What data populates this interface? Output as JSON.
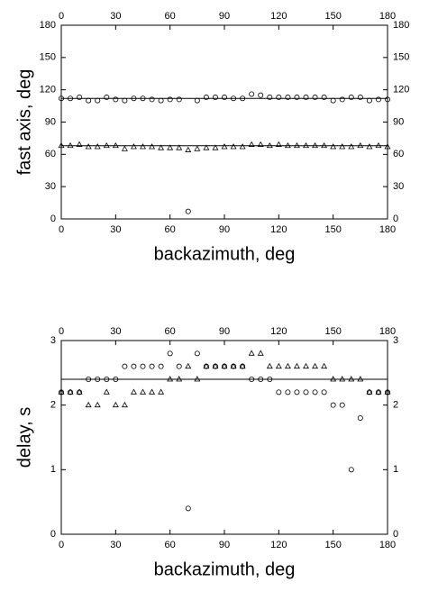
{
  "chart_data": [
    {
      "type": "scatter",
      "xlabel": "backazimuth, deg",
      "ylabel": "fast axis, deg",
      "x": [
        0,
        5,
        10,
        15,
        20,
        25,
        30,
        35,
        40,
        45,
        50,
        55,
        60,
        65,
        70,
        75,
        80,
        85,
        90,
        95,
        100,
        105,
        110,
        115,
        120,
        125,
        130,
        135,
        140,
        145,
        150,
        155,
        160,
        165,
        170,
        175,
        180
      ],
      "series": [
        {
          "marker": "circle",
          "color": "#000000",
          "values": [
            112,
            112,
            113,
            110,
            110,
            113,
            111,
            110,
            112,
            112,
            111,
            110,
            111,
            111,
            7,
            110,
            113,
            113,
            113,
            112,
            112,
            116,
            115,
            113,
            113,
            113,
            113,
            113,
            113,
            113,
            110,
            111,
            113,
            113,
            110,
            111,
            111
          ]
        },
        {
          "marker": "triangle",
          "color": "#000000",
          "values": [
            68,
            68,
            69,
            67,
            67,
            68,
            68,
            65,
            67,
            67,
            67,
            66,
            66,
            66,
            64,
            65,
            66,
            66,
            67,
            67,
            67,
            69,
            69,
            68,
            69,
            68,
            68,
            68,
            68,
            68,
            67,
            67,
            67,
            68,
            67,
            68,
            67
          ]
        }
      ],
      "hlines": [
        112,
        68
      ],
      "xlim": [
        0,
        180
      ],
      "xticks": [
        0,
        30,
        60,
        90,
        120,
        150,
        180
      ],
      "ylim": [
        0,
        180
      ],
      "yticks": [
        0,
        30,
        60,
        90,
        120,
        150,
        180
      ]
    },
    {
      "type": "scatter",
      "xlabel": "backazimuth, deg",
      "ylabel": "delay, s",
      "x": [
        0,
        5,
        10,
        15,
        20,
        25,
        30,
        35,
        40,
        45,
        50,
        55,
        60,
        65,
        70,
        75,
        80,
        85,
        90,
        95,
        100,
        105,
        110,
        115,
        120,
        125,
        130,
        135,
        140,
        145,
        150,
        155,
        160,
        165,
        170,
        175,
        180
      ],
      "series": [
        {
          "marker": "circle",
          "color": "#000000",
          "values": [
            2.2,
            2.2,
            2.2,
            2.4,
            2.4,
            2.4,
            2.4,
            2.6,
            2.6,
            2.6,
            2.6,
            2.6,
            2.8,
            2.6,
            0.4,
            2.8,
            2.6,
            2.6,
            2.6,
            2.6,
            2.6,
            2.4,
            2.4,
            2.4,
            2.2,
            2.2,
            2.2,
            2.2,
            2.2,
            2.2,
            2.0,
            2.0,
            1.0,
            1.8,
            2.2,
            2.2,
            2.2
          ]
        },
        {
          "marker": "triangle",
          "color": "#000000",
          "values": [
            2.2,
            2.2,
            2.2,
            2.0,
            2.0,
            2.2,
            2.0,
            2.0,
            2.2,
            2.2,
            2.2,
            2.2,
            2.4,
            2.4,
            2.6,
            2.4,
            2.6,
            2.6,
            2.6,
            2.6,
            2.6,
            2.8,
            2.8,
            2.6,
            2.6,
            2.6,
            2.6,
            2.6,
            2.6,
            2.6,
            2.4,
            2.4,
            2.4,
            2.4,
            2.2,
            2.2,
            2.2
          ]
        }
      ],
      "hlines": [
        2.4
      ],
      "xlim": [
        0,
        180
      ],
      "xticks": [
        0,
        30,
        60,
        90,
        120,
        150,
        180
      ],
      "ylim": [
        0,
        3
      ],
      "yticks": [
        0,
        1,
        2,
        3
      ]
    }
  ]
}
